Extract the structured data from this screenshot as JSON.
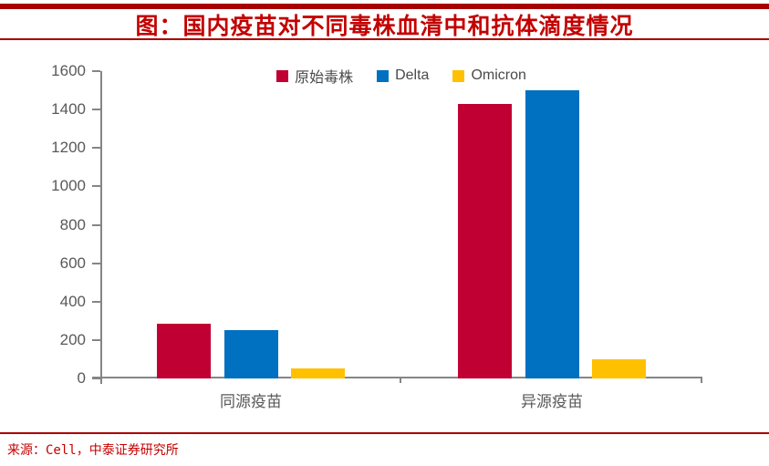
{
  "header": {
    "title": "图：国内疫苗对不同毒株血清中和抗体滴度情况"
  },
  "footer": {
    "source": "来源：Cell，中泰证券研究所"
  },
  "colors": {
    "title_red": "#C40000",
    "rule_red": "#A80000",
    "axis_gray": "#858585",
    "tick_label_gray": "#595959",
    "legend_text": "#4A4A4A"
  },
  "chart_data": {
    "type": "bar",
    "title": "图：国内疫苗对不同毒株血清中和抗体滴度情况",
    "categories": [
      "同源疫苗",
      "异源疫苗"
    ],
    "series": [
      {
        "name": "原始毒株",
        "color": "#C00032",
        "values": [
          285,
          1430
        ]
      },
      {
        "name": "Delta",
        "color": "#0070C0",
        "values": [
          250,
          1500
        ]
      },
      {
        "name": "Omicron",
        "color": "#FFC000",
        "values": [
          50,
          100
        ]
      }
    ],
    "xlabel": "",
    "ylabel": "",
    "ylim": [
      0,
      1600
    ],
    "ytick_step": 200,
    "yticks": [
      0,
      200,
      400,
      600,
      800,
      1000,
      1200,
      1400,
      1600
    ],
    "grid": false,
    "legend_position": "top"
  }
}
